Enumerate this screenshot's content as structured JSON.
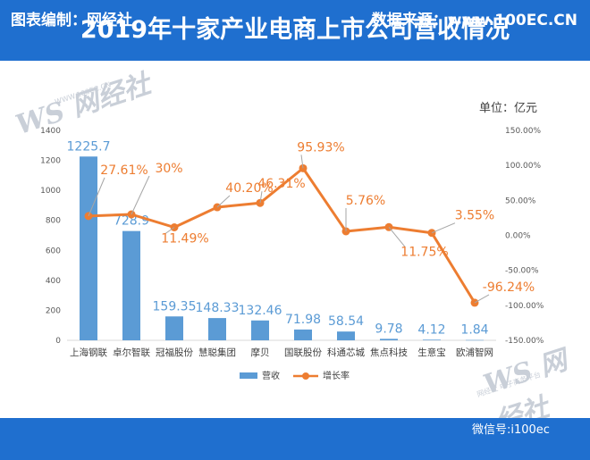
{
  "header": {
    "title": "2019年十家产业电商上市公司营收情况"
  },
  "unit_label": "单位：亿元",
  "footer": {
    "left": "图表编制：网经社",
    "right": "数据来源：www.100EC.CN",
    "wechat": "微信号:i100ec"
  },
  "watermark": {
    "brand": "WS 网经社",
    "url": "WWW.100EC.CN",
    "slogan": "网经社 电子商务平台"
  },
  "colors": {
    "bar": "#5b9bd5",
    "line": "#ed7d31",
    "header": "#1f6fcf"
  },
  "chart_data": {
    "type": "bar+line",
    "categories": [
      "上海钢联",
      "卓尔智联",
      "冠福股份",
      "慧聪集团",
      "摩贝",
      "国联股份",
      "科通芯城",
      "焦点科技",
      "生意宝",
      "欧浦智网"
    ],
    "series": [
      {
        "name": "营收",
        "type": "bar",
        "axis": "left",
        "values": [
          1225.7,
          728.9,
          159.35,
          148.33,
          132.46,
          71.98,
          58.54,
          9.78,
          4.12,
          1.84
        ],
        "labels": [
          "1225.7",
          "728.9",
          "159.35",
          "148.33",
          "132.46",
          "71.98",
          "58.54",
          "9.78",
          "4.12",
          "1.84"
        ]
      },
      {
        "name": "增长率",
        "type": "line",
        "axis": "right",
        "values": [
          27.61,
          30,
          11.49,
          40.2,
          46.31,
          95.93,
          5.76,
          11.75,
          3.55,
          -96.24
        ],
        "labels": [
          "27.61%",
          "30%",
          "11.49%",
          "40.20%",
          "46.31%",
          "95.93%",
          "5.76%",
          "11.75%",
          "3.55%",
          "-96.24%"
        ]
      }
    ],
    "left_axis": {
      "min": 0,
      "max": 1400,
      "ticks": [
        "0",
        "200",
        "400",
        "600",
        "800",
        "1000",
        "1200",
        "1400"
      ]
    },
    "right_axis": {
      "min": -150,
      "max": 150,
      "ticks": [
        "-150.00%",
        "-100.00%",
        "-50.00%",
        "0.00%",
        "50.00%",
        "100.00%",
        "150.00%"
      ]
    },
    "legend": {
      "position": "bottom"
    },
    "grid": false
  }
}
